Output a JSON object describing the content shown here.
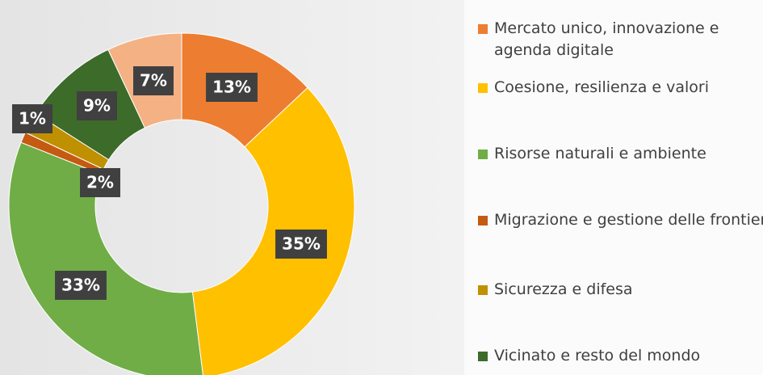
{
  "chart_data": {
    "type": "donut",
    "categories": [
      "Mercato unico, innovazione e agenda digitale",
      "Coesione, resilienza e valori",
      "Risorse naturali e ambiente",
      "Migrazione e gestione delle frontiere",
      "Sicurezza e difesa",
      "Vicinato e resto del mondo",
      null
    ],
    "values": [
      13,
      35,
      33,
      1,
      2,
      9,
      7
    ],
    "value_labels": [
      "13%",
      "35%",
      "33%",
      "1%",
      "2%",
      "9%",
      "7%"
    ],
    "colors": [
      "#ed7d31",
      "#ffc000",
      "#70ad47",
      "#c55a11",
      "#bf9000",
      "#3d6b2a",
      "#f4b183"
    ],
    "legend": "right"
  }
}
